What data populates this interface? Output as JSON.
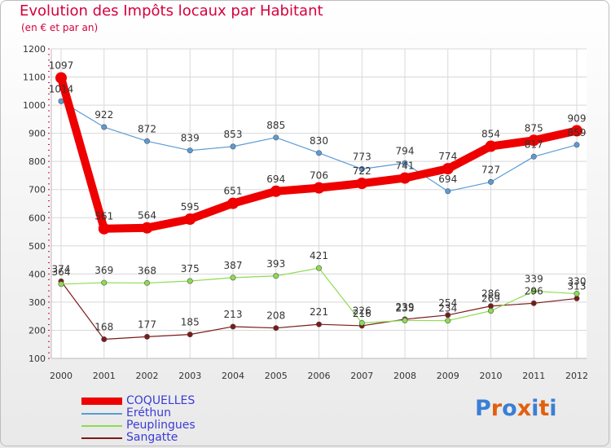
{
  "chart_data": {
    "type": "line",
    "title": "Evolution des Impôts locaux par Habitant",
    "subtitle": "(en € et par an)",
    "xlabel": "",
    "ylabel": "",
    "categories": [
      "2000",
      "2001",
      "2002",
      "2003",
      "2004",
      "2005",
      "2006",
      "2007",
      "2008",
      "2009",
      "2010",
      "2011",
      "2012"
    ],
    "ylim": [
      100,
      1200
    ],
    "yticks": [
      100,
      200,
      300,
      400,
      500,
      600,
      700,
      800,
      900,
      1000,
      1100,
      1200
    ],
    "grid": true,
    "series": [
      {
        "name": "COQUELLES",
        "color": "#ee0000",
        "values": [
          1097,
          561,
          564,
          595,
          651,
          694,
          706,
          722,
          741,
          774,
          854,
          875,
          909
        ]
      },
      {
        "name": "Eréthun",
        "color": "#5b9bd5",
        "values": [
          1014,
          922,
          872,
          839,
          853,
          885,
          830,
          773,
          794,
          694,
          727,
          817,
          859
        ]
      },
      {
        "name": "Peuplingues",
        "color": "#8cdc50",
        "values": [
          364,
          369,
          368,
          375,
          387,
          393,
          421,
          226,
          235,
          234,
          269,
          339,
          330
        ]
      },
      {
        "name": "Sangatte",
        "color": "#7a1a1a",
        "values": [
          374,
          168,
          177,
          185,
          213,
          208,
          221,
          216,
          239,
          254,
          286,
          296,
          313
        ]
      }
    ]
  },
  "logo": {
    "text": "Proxiti",
    "colors": [
      "#3a7fd5",
      "#e06010",
      "#3a7fd5",
      "#e06010",
      "#3a7fd5",
      "#e06010",
      "#3a7fd5"
    ]
  }
}
